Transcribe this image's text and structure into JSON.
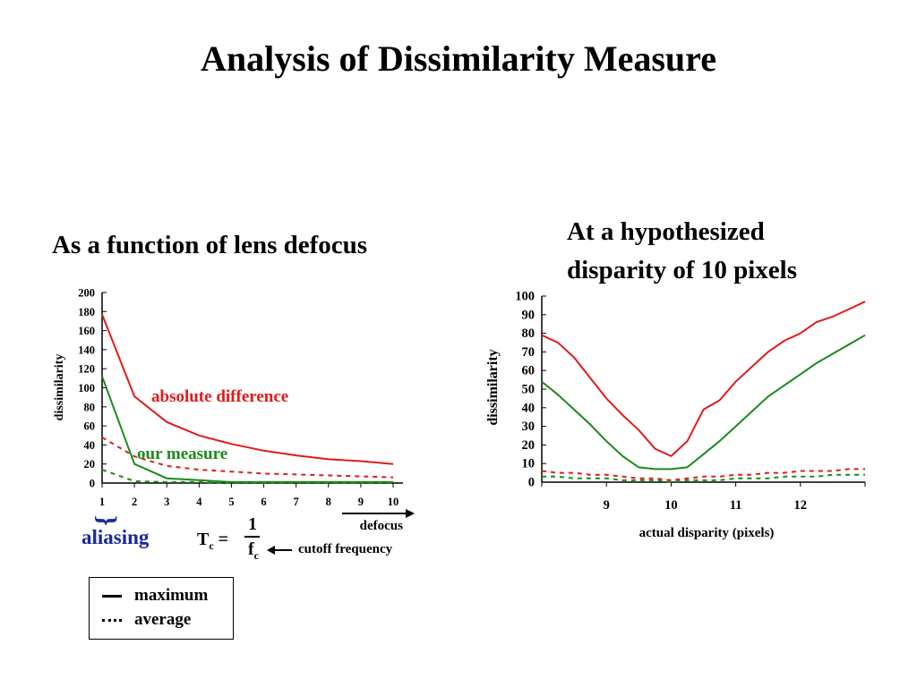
{
  "slide": {
    "title": "Analysis of Dissimilarity Measure",
    "left_subtitle": "As a function of lens defocus",
    "right_subtitle_line1": "At a hypothesized",
    "right_subtitle_line2": "disparity of 10 pixels"
  },
  "annotations": {
    "absolute_difference": "absolute difference",
    "our_measure": "our measure",
    "aliasing": "aliasing",
    "brace": "}",
    "tc": "T",
    "tc_sub": "c",
    "tc_eq": " =",
    "frac_num": "1",
    "fc": "f",
    "fc_sub": "c",
    "cutoff_frequency": "cutoff frequency"
  },
  "legend": {
    "maximum": "maximum",
    "average": "average"
  },
  "colors": {
    "red": "#e01b1b",
    "green": "#1a8a1a",
    "aliasing_blue": "#1a2a9a"
  },
  "chart_data": [
    {
      "type": "line",
      "xlabel": "defocus",
      "ylabel": "dissimilarity",
      "xlim": [
        1,
        10
      ],
      "ylim": [
        0,
        200
      ],
      "x_ticks": [
        1,
        2,
        3,
        4,
        5,
        6,
        7,
        8,
        9,
        10
      ],
      "y_ticks": [
        0,
        20,
        40,
        60,
        80,
        100,
        120,
        140,
        160,
        180,
        200
      ],
      "x": [
        1,
        2,
        3,
        4,
        5,
        6,
        7,
        8,
        9,
        10
      ],
      "series": [
        {
          "color": "#e01b1b",
          "style": "solid",
          "values": [
            177,
            91,
            64,
            50,
            41,
            34,
            29,
            25,
            23,
            20
          ]
        },
        {
          "color": "#1a8a1a",
          "style": "solid",
          "values": [
            112,
            20,
            5,
            3,
            1,
            1,
            1,
            1,
            1,
            1
          ]
        },
        {
          "color": "#e01b1b",
          "style": "dashed",
          "values": [
            48,
            28,
            18,
            14,
            12,
            10,
            9,
            8,
            7,
            6
          ]
        },
        {
          "color": "#1a8a1a",
          "style": "dashed",
          "values": [
            14,
            2,
            1,
            1,
            0,
            0,
            0,
            0,
            0,
            0
          ]
        }
      ]
    },
    {
      "type": "line",
      "xlabel": "actual disparity (pixels)",
      "ylabel": "dissimilarity",
      "xlim": [
        8,
        13
      ],
      "ylim": [
        0,
        100
      ],
      "x_ticks": [
        9,
        10,
        11,
        12
      ],
      "y_ticks": [
        0,
        10,
        20,
        30,
        40,
        50,
        60,
        70,
        80,
        90,
        100
      ],
      "x": [
        8.0,
        8.25,
        8.5,
        8.75,
        9.0,
        9.25,
        9.5,
        9.75,
        10.0,
        10.25,
        10.5,
        10.75,
        11.0,
        11.25,
        11.5,
        11.75,
        12.0,
        12.25,
        12.5,
        12.75,
        13.0
      ],
      "series": [
        {
          "color": "#e01b1b",
          "style": "solid",
          "values": [
            79,
            75,
            67,
            56,
            45,
            36,
            28,
            18,
            14,
            22,
            39,
            44,
            54,
            62,
            70,
            76,
            80,
            86,
            89,
            93,
            97
          ]
        },
        {
          "color": "#1a8a1a",
          "style": "solid",
          "values": [
            54,
            47,
            39,
            31,
            22,
            14,
            8,
            7,
            7,
            8,
            15,
            22,
            30,
            38,
            46,
            52,
            58,
            64,
            69,
            74,
            79
          ]
        },
        {
          "color": "#e01b1b",
          "style": "dashed",
          "values": [
            6,
            5,
            5,
            4,
            4,
            3,
            2,
            2,
            1,
            2,
            3,
            3,
            4,
            4,
            5,
            5,
            6,
            6,
            6,
            7,
            7
          ]
        },
        {
          "color": "#1a8a1a",
          "style": "dashed",
          "values": [
            3,
            3,
            2,
            2,
            2,
            1,
            1,
            1,
            0,
            1,
            1,
            1,
            2,
            2,
            2,
            3,
            3,
            3,
            4,
            4,
            4
          ]
        }
      ]
    }
  ]
}
